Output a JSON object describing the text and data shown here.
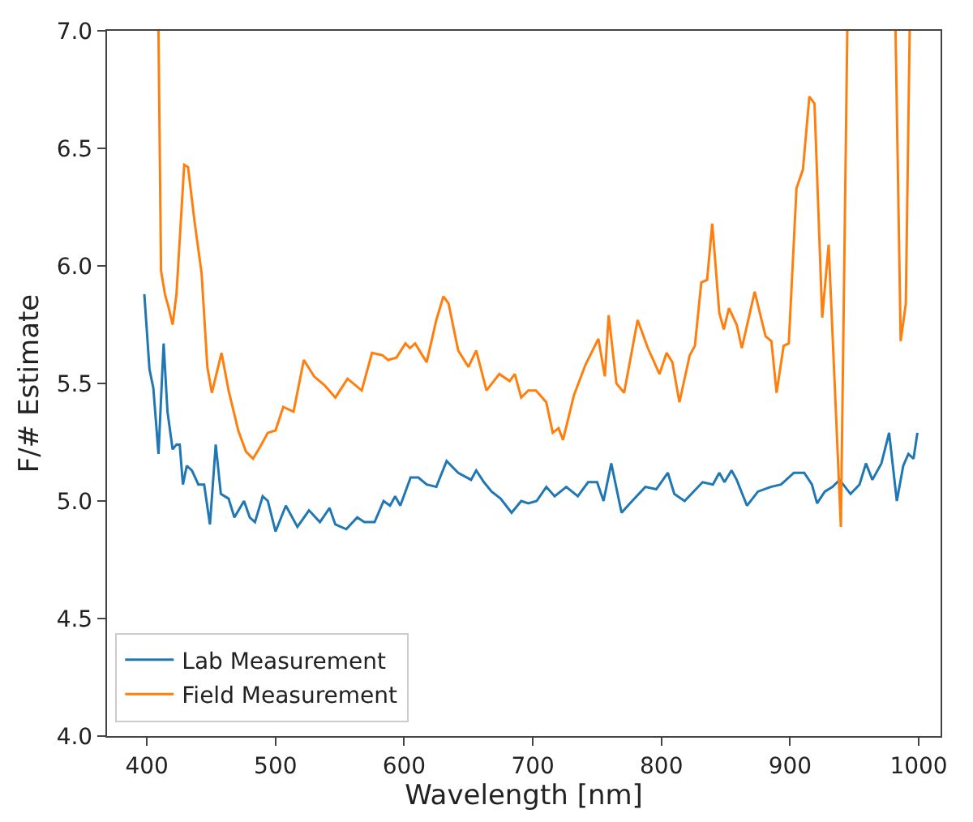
{
  "chart_data": {
    "type": "line",
    "xlabel": "Wavelength [nm]",
    "ylabel": "F/# Estimate",
    "xlim": [
      369,
      1017
    ],
    "ylim": [
      4.0,
      7.0
    ],
    "xticks": [
      400,
      500,
      600,
      700,
      800,
      900,
      1000
    ],
    "yticks": [
      {
        "value": 4.0,
        "label": "4.0"
      },
      {
        "value": 4.5,
        "label": "4.5"
      },
      {
        "value": 5.0,
        "label": "5.0"
      },
      {
        "value": 5.5,
        "label": "5.5"
      },
      {
        "value": 6.0,
        "label": "6.0"
      },
      {
        "value": 6.5,
        "label": "6.5"
      },
      {
        "value": 7.0,
        "label": "7.0"
      }
    ],
    "legend": "bottom left",
    "marker": "none",
    "line_style": "solid",
    "series": [
      {
        "name": "Lab Measurement",
        "color": "#1f77b4",
        "x": [
          398,
          402,
          405,
          409,
          413,
          416,
          420,
          423,
          425.5,
          428,
          431,
          435,
          440,
          444.5,
          449,
          453.5,
          457.5,
          463.5,
          468,
          475.5,
          480,
          484,
          490,
          494,
          500,
          508,
          517,
          526,
          534.5,
          542,
          546.5,
          555,
          563.5,
          569,
          577,
          584,
          589,
          593,
          597,
          605,
          611,
          617.5,
          625,
          633,
          642,
          652,
          656,
          662,
          668,
          675,
          683.5,
          691,
          696.5,
          703,
          710.5,
          717,
          726,
          735,
          743,
          750,
          755,
          761,
          769,
          775.5,
          787.5,
          796,
          805,
          810,
          818,
          832,
          840,
          845,
          849,
          854.5,
          858.5,
          866.5,
          875,
          885,
          893,
          903,
          911,
          917,
          921,
          927,
          933,
          938.5,
          947,
          954,
          959,
          964,
          971,
          977,
          983,
          988,
          992,
          996,
          999
        ],
        "values": [
          5.88,
          5.56,
          5.48,
          5.2,
          5.67,
          5.38,
          5.22,
          5.24,
          5.24,
          5.07,
          5.15,
          5.13,
          5.07,
          5.07,
          4.9,
          5.24,
          5.03,
          5.01,
          4.93,
          5.0,
          4.93,
          4.91,
          5.02,
          5.0,
          4.87,
          4.98,
          4.89,
          4.96,
          4.91,
          4.97,
          4.9,
          4.88,
          4.93,
          4.91,
          4.91,
          5.0,
          4.98,
          5.02,
          4.98,
          5.1,
          5.1,
          5.07,
          5.06,
          5.17,
          5.12,
          5.09,
          5.13,
          5.08,
          5.04,
          5.01,
          4.95,
          5.0,
          4.99,
          5.0,
          5.06,
          5.02,
          5.06,
          5.02,
          5.08,
          5.08,
          5.0,
          5.16,
          4.95,
          4.99,
          5.06,
          5.05,
          5.12,
          5.03,
          5.0,
          5.08,
          5.07,
          5.12,
          5.08,
          5.13,
          5.09,
          4.98,
          5.04,
          5.06,
          5.07,
          5.12,
          5.12,
          5.07,
          4.99,
          5.04,
          5.06,
          5.09,
          5.03,
          5.07,
          5.16,
          5.09,
          5.16,
          5.29,
          5.0,
          5.15,
          5.2,
          5.18,
          5.29
        ]
      },
      {
        "name": "Field Measurement",
        "color": "#ff7f0e",
        "x": [
          409,
          411,
          414,
          417,
          420,
          423,
          429,
          432,
          437,
          442.5,
          447,
          450.5,
          458,
          463.5,
          471,
          477,
          482.5,
          488,
          494,
          500,
          506,
          514,
          522,
          530,
          538.5,
          546.5,
          556,
          567,
          575,
          583,
          587.5,
          594,
          601,
          604.5,
          608.5,
          617.5,
          625,
          630.5,
          634.5,
          642,
          650,
          656,
          664,
          674,
          682,
          686,
          691,
          696.5,
          702.5,
          710.5,
          715.5,
          720,
          723.5,
          732,
          741,
          751,
          756,
          759,
          765,
          771,
          781.5,
          789.5,
          798.5,
          804,
          808.5,
          814,
          822,
          826,
          831,
          835.5,
          839.5,
          845,
          848.5,
          852.5,
          858.5,
          862.5,
          872.5,
          881,
          885.5,
          889.5,
          895,
          899,
          905,
          910,
          915,
          919,
          925,
          930,
          939.5,
          944.5,
          963,
          982,
          986,
          990,
          993
        ],
        "values": [
          7.0,
          5.98,
          5.88,
          5.82,
          5.75,
          5.88,
          6.43,
          6.42,
          6.19,
          5.97,
          5.57,
          5.46,
          5.63,
          5.47,
          5.3,
          5.21,
          5.18,
          5.23,
          5.29,
          5.3,
          5.4,
          5.38,
          5.6,
          5.53,
          5.49,
          5.44,
          5.52,
          5.47,
          5.63,
          5.62,
          5.6,
          5.61,
          5.67,
          5.65,
          5.67,
          5.59,
          5.77,
          5.87,
          5.84,
          5.64,
          5.57,
          5.64,
          5.47,
          5.54,
          5.51,
          5.54,
          5.44,
          5.47,
          5.47,
          5.42,
          5.29,
          5.31,
          5.26,
          5.45,
          5.58,
          5.69,
          5.53,
          5.79,
          5.5,
          5.46,
          5.77,
          5.65,
          5.54,
          5.63,
          5.59,
          5.42,
          5.62,
          5.66,
          5.93,
          5.94,
          6.18,
          5.8,
          5.73,
          5.82,
          5.75,
          5.65,
          5.89,
          5.7,
          5.68,
          5.46,
          5.66,
          5.67,
          6.33,
          6.41,
          6.72,
          6.69,
          5.78,
          6.09,
          4.89,
          7.0,
          null,
          7.0,
          5.68,
          5.84,
          7.0
        ]
      }
    ]
  }
}
